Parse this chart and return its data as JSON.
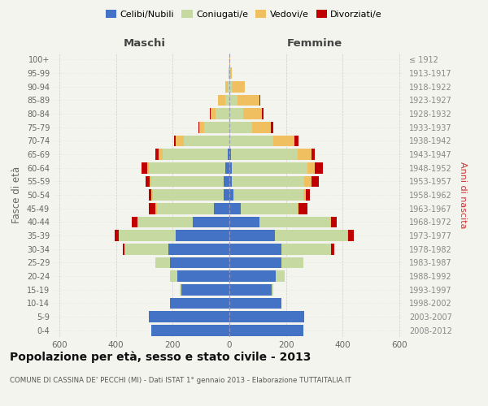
{
  "age_groups_bottom_to_top": [
    "0-4",
    "5-9",
    "10-14",
    "15-19",
    "20-24",
    "25-29",
    "30-34",
    "35-39",
    "40-44",
    "45-49",
    "50-54",
    "55-59",
    "60-64",
    "65-69",
    "70-74",
    "75-79",
    "80-84",
    "85-89",
    "90-94",
    "95-99",
    "100+"
  ],
  "birth_years_bottom_to_top": [
    "2008-2012",
    "2003-2007",
    "1998-2002",
    "1993-1997",
    "1988-1992",
    "1983-1987",
    "1978-1982",
    "1973-1977",
    "1968-1972",
    "1963-1967",
    "1958-1962",
    "1953-1957",
    "1948-1952",
    "1943-1947",
    "1938-1942",
    "1933-1937",
    "1928-1932",
    "1923-1927",
    "1918-1922",
    "1913-1917",
    "≤ 1912"
  ],
  "m_cel": [
    275,
    285,
    210,
    170,
    185,
    210,
    215,
    190,
    130,
    55,
    20,
    20,
    15,
    5,
    0,
    0,
    0,
    0,
    0,
    0,
    0
  ],
  "m_con": [
    0,
    0,
    0,
    5,
    25,
    50,
    155,
    200,
    195,
    200,
    250,
    255,
    270,
    230,
    160,
    90,
    50,
    15,
    5,
    0,
    0
  ],
  "m_ved": [
    0,
    0,
    0,
    0,
    0,
    0,
    0,
    0,
    0,
    5,
    5,
    5,
    5,
    15,
    30,
    15,
    15,
    25,
    10,
    2,
    0
  ],
  "m_div": [
    0,
    0,
    0,
    0,
    0,
    0,
    5,
    15,
    20,
    25,
    10,
    15,
    20,
    10,
    5,
    5,
    5,
    0,
    0,
    0,
    0
  ],
  "f_nub": [
    260,
    265,
    185,
    150,
    165,
    185,
    185,
    160,
    105,
    40,
    15,
    10,
    10,
    5,
    0,
    0,
    0,
    0,
    0,
    0,
    0
  ],
  "f_con": [
    0,
    0,
    0,
    5,
    30,
    75,
    175,
    255,
    250,
    200,
    245,
    255,
    265,
    235,
    155,
    80,
    50,
    30,
    10,
    2,
    0
  ],
  "f_ved": [
    0,
    0,
    0,
    0,
    0,
    0,
    0,
    5,
    5,
    5,
    10,
    25,
    25,
    50,
    75,
    65,
    65,
    75,
    45,
    8,
    3
  ],
  "f_div": [
    0,
    0,
    0,
    0,
    0,
    0,
    10,
    20,
    20,
    30,
    15,
    25,
    30,
    10,
    15,
    10,
    5,
    5,
    0,
    0,
    0
  ],
  "color_cel": "#4472c4",
  "color_con": "#c5d9a0",
  "color_ved": "#f0c060",
  "color_div": "#c00000",
  "legend_labels": [
    "Celibi/Nubili",
    "Coniugati/e",
    "Vedovi/e",
    "Divorziati/e"
  ],
  "age_label": "Fasce di età",
  "birth_label": "Anni di nascita",
  "header_left": "Maschi",
  "header_right": "Femmine",
  "title": "Popolazione per età, sesso e stato civile - 2013",
  "subtitle": "COMUNE DI CASSINA DE' PECCHI (MI) - Dati ISTAT 1° gennaio 2013 - Elaborazione TUTTAITALIA.IT",
  "bg_color": "#f4f4ee",
  "xlim": 620
}
